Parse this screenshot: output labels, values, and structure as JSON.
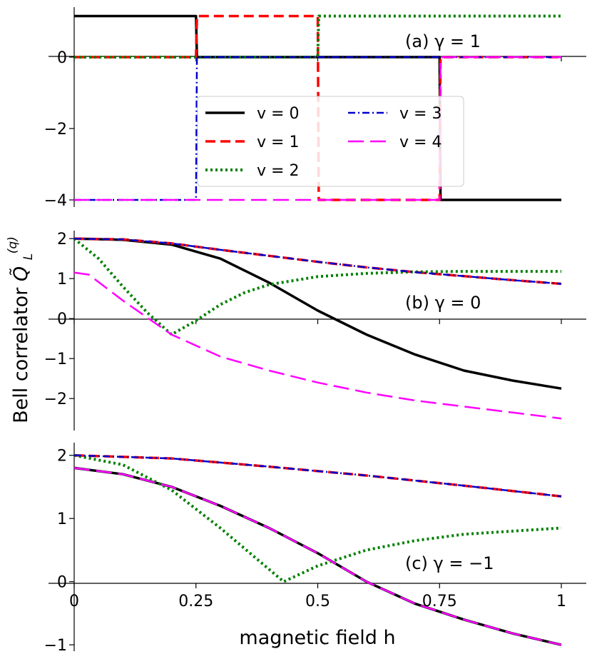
{
  "figure": {
    "ylabel": "Bell correlator",
    "ylabel_symbol": "Q̃",
    "ylabel_sub": "L",
    "ylabel_sup": "(q)",
    "xlabel": "magnetic field h"
  },
  "legend": {
    "entries": [
      {
        "label": "v = 0",
        "color": "#000000",
        "style": "solid"
      },
      {
        "label": "v = 1",
        "color": "#ff0000",
        "style": "dashed"
      },
      {
        "label": "v = 2",
        "color": "#008000",
        "style": "dotted"
      },
      {
        "label": "v = 3",
        "color": "#0000cd",
        "style": "dashdot"
      },
      {
        "label": "v = 4",
        "color": "#ff00ff",
        "style": "longdash"
      }
    ]
  },
  "chart_data": [
    {
      "type": "line",
      "title": "(a) γ = 1",
      "xlim": [
        0,
        1
      ],
      "ylim": [
        -4.2,
        1.4
      ],
      "yticks": [
        0,
        -2,
        -4
      ],
      "ytick_labels": [
        "0",
        "−2",
        "−4"
      ],
      "series": [
        {
          "name": "v = 0",
          "x": [
            0,
            0.25,
            0.252,
            0.75,
            0.752,
            1
          ],
          "y": [
            1.15,
            1.15,
            0,
            0,
            -4,
            -4
          ]
        },
        {
          "name": "v = 1",
          "x": [
            0,
            0.25,
            0.252,
            0.5,
            0.502,
            0.75,
            0.752,
            1
          ],
          "y": [
            0,
            0,
            1.15,
            1.15,
            -4,
            -4,
            0,
            0
          ]
        },
        {
          "name": "v = 2",
          "x": [
            0,
            0.5,
            0.502,
            1
          ],
          "y": [
            0,
            0,
            1.15,
            1.15
          ]
        },
        {
          "name": "v = 3",
          "x": [
            0,
            0.25,
            0.252,
            1
          ],
          "y": [
            -4,
            -4,
            0,
            0
          ]
        },
        {
          "name": "v = 4",
          "x": [
            0,
            0.75,
            0.752,
            1
          ],
          "y": [
            -4,
            -4,
            0,
            0
          ]
        }
      ]
    },
    {
      "type": "line",
      "title": "(b) γ = 0",
      "xlim": [
        0,
        1
      ],
      "ylim": [
        -2.8,
        2.2
      ],
      "yticks": [
        2,
        1,
        0,
        -1,
        -2
      ],
      "ytick_labels": [
        "2",
        "1",
        "0",
        "−1",
        "−2"
      ],
      "series": [
        {
          "name": "v = 0",
          "x": [
            0,
            0.1,
            0.2,
            0.3,
            0.4,
            0.5,
            0.6,
            0.7,
            0.8,
            0.9,
            1.0
          ],
          "y": [
            2.0,
            1.97,
            1.85,
            1.5,
            0.9,
            0.2,
            -0.4,
            -0.9,
            -1.3,
            -1.55,
            -1.75
          ]
        },
        {
          "name": "v = 1",
          "x": [
            0,
            0.1,
            0.2,
            0.3,
            0.4,
            0.5,
            0.6,
            0.7,
            0.8,
            0.9,
            1.0
          ],
          "y": [
            2.0,
            1.98,
            1.88,
            1.72,
            1.57,
            1.42,
            1.28,
            1.16,
            1.06,
            0.96,
            0.87
          ]
        },
        {
          "name": "v = 2",
          "x": [
            0,
            0.05,
            0.1,
            0.15,
            0.2,
            0.25,
            0.3,
            0.35,
            0.4,
            0.5,
            0.6,
            0.7,
            0.8,
            0.9,
            1.0
          ],
          "y": [
            2.0,
            1.5,
            0.8,
            0.15,
            -0.4,
            -0.05,
            0.35,
            0.65,
            0.85,
            1.05,
            1.13,
            1.17,
            1.18,
            1.18,
            1.18
          ]
        },
        {
          "name": "v = 3",
          "x": [
            0,
            0.1,
            0.2,
            0.3,
            0.4,
            0.5,
            0.6,
            0.7,
            0.8,
            0.9,
            1.0
          ],
          "y": [
            2.0,
            1.98,
            1.88,
            1.72,
            1.57,
            1.42,
            1.28,
            1.16,
            1.06,
            0.96,
            0.87
          ]
        },
        {
          "name": "v = 4",
          "x": [
            0,
            0.03,
            0.1,
            0.2,
            0.3,
            0.4,
            0.5,
            0.6,
            0.7,
            0.8,
            0.9,
            1.0
          ],
          "y": [
            1.15,
            1.1,
            0.45,
            -0.4,
            -0.95,
            -1.3,
            -1.6,
            -1.85,
            -2.05,
            -2.2,
            -2.35,
            -2.5
          ]
        }
      ]
    },
    {
      "type": "line",
      "title": "(c) γ = −1",
      "xlim": [
        0,
        1
      ],
      "ylim": [
        -1.1,
        2.2
      ],
      "yticks": [
        2,
        1,
        0,
        -1
      ],
      "ytick_labels": [
        "2",
        "1",
        "0",
        "−1"
      ],
      "xticks": [
        0,
        0.25,
        0.5,
        0.75,
        1
      ],
      "xtick_labels": [
        "0",
        "0.25",
        "0.5",
        "0.75",
        "1"
      ],
      "series": [
        {
          "name": "v = 0",
          "x": [
            0,
            0.1,
            0.2,
            0.3,
            0.4,
            0.5,
            0.6,
            0.7,
            0.8,
            0.9,
            1.0
          ],
          "y": [
            1.8,
            1.7,
            1.5,
            1.2,
            0.85,
            0.45,
            0.0,
            -0.35,
            -0.6,
            -0.82,
            -1.0
          ]
        },
        {
          "name": "v = 1",
          "x": [
            0,
            0.2,
            0.4,
            0.6,
            0.8,
            1.0
          ],
          "y": [
            2.0,
            1.95,
            1.82,
            1.68,
            1.52,
            1.35
          ]
        },
        {
          "name": "v = 2",
          "x": [
            0,
            0.1,
            0.2,
            0.3,
            0.43,
            0.5,
            0.6,
            0.7,
            0.8,
            0.9,
            1.0
          ],
          "y": [
            2.0,
            1.85,
            1.45,
            0.85,
            0.0,
            0.25,
            0.5,
            0.65,
            0.75,
            0.8,
            0.85
          ]
        },
        {
          "name": "v = 3",
          "x": [
            0,
            0.2,
            0.4,
            0.6,
            0.8,
            1.0
          ],
          "y": [
            2.0,
            1.95,
            1.82,
            1.68,
            1.52,
            1.35
          ]
        },
        {
          "name": "v = 4",
          "x": [
            0,
            0.1,
            0.2,
            0.3,
            0.4,
            0.5,
            0.6,
            0.7,
            0.8,
            0.9,
            1.0
          ],
          "y": [
            1.8,
            1.7,
            1.5,
            1.2,
            0.85,
            0.45,
            0.0,
            -0.35,
            -0.6,
            -0.82,
            -1.0
          ]
        }
      ]
    }
  ]
}
